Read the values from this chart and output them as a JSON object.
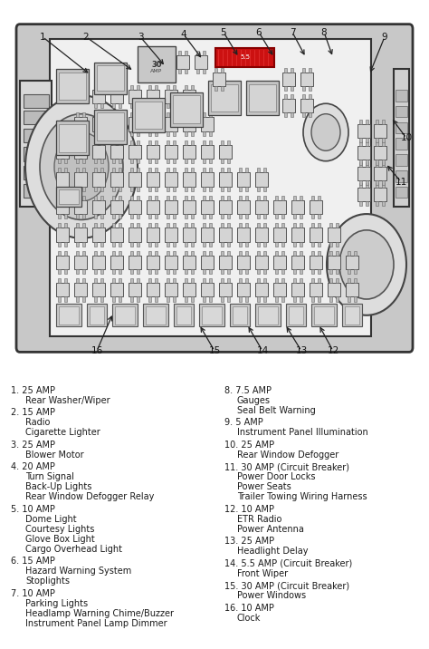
{
  "bg_color": "#ffffff",
  "text_color": "#1a1a1a",
  "diagram_bg": "#ffffff",
  "box_bg": "#e8e8e8",
  "fuse_fill": "#d4d4d4",
  "fuse_edge": "#555555",
  "left_col": [
    [
      "1. 25 AMP",
      "   Rear Washer/Wiper"
    ],
    [
      "2. 15 AMP",
      "   Radio",
      "   Cigarette Lighter"
    ],
    [
      "3. 25 AMP",
      "   Blower Motor"
    ],
    [
      "4. 20 AMP",
      "   Turn Signal",
      "   Back-Up Lights",
      "   Rear Window Defogger Relay"
    ],
    [
      "5. 10 AMP",
      "   Dome Light",
      "   Courtesy Lights",
      "   Glove Box Light",
      "   Cargo Overhead Light"
    ],
    [
      "6. 15 AMP",
      "   Hazard Warning System",
      "   Stoplights"
    ],
    [
      "7. 10 AMP",
      "   Parking Lights",
      "   Headlamp Warning Chime/Buzzer",
      "   Instrument Panel Lamp Dimmer"
    ]
  ],
  "right_col": [
    [
      "8. 7.5 AMP",
      "   Gauges",
      "   Seal Belt Warning"
    ],
    [
      "9. 5 AMP",
      "   Instrument Panel Illumination"
    ],
    [
      "10. 25 AMP",
      "    Rear Window Defogger"
    ],
    [
      "11. 30 AMP (Circuit Breaker)",
      "    Power Door Locks",
      "    Power Seats",
      "    Trailer Towing Wiring Harness"
    ],
    [
      "12. 10 AMP",
      "    ETR Radio",
      "    Power Antenna"
    ],
    [
      "13. 25 AMP",
      "    Headlight Delay"
    ],
    [
      "14. 5.5 AMP (Circuit Breaker)",
      "    Front Wiper"
    ],
    [
      "15. 30 AMP (Circuit Breaker)",
      "    Power Windows"
    ],
    [
      "16. 10 AMP",
      "    Clock"
    ]
  ],
  "arrow_data": [
    [
      "1",
      47,
      298,
      100,
      265
    ],
    [
      "2",
      95,
      298,
      148,
      268
    ],
    [
      "3",
      155,
      298,
      183,
      272
    ],
    [
      "4",
      203,
      300,
      224,
      278
    ],
    [
      "5",
      247,
      302,
      264,
      280
    ],
    [
      "6",
      286,
      302,
      303,
      280
    ],
    [
      "7",
      323,
      302,
      338,
      280
    ],
    [
      "8",
      358,
      302,
      368,
      280
    ],
    [
      "9",
      425,
      298,
      408,
      265
    ],
    [
      "10",
      449,
      210,
      432,
      228
    ],
    [
      "11",
      443,
      172,
      426,
      188
    ],
    [
      "12",
      368,
      25,
      352,
      48
    ],
    [
      "13",
      333,
      25,
      315,
      48
    ],
    [
      "14",
      290,
      25,
      273,
      48
    ],
    [
      "15",
      237,
      25,
      220,
      48
    ],
    [
      "16",
      107,
      25,
      125,
      58
    ]
  ]
}
